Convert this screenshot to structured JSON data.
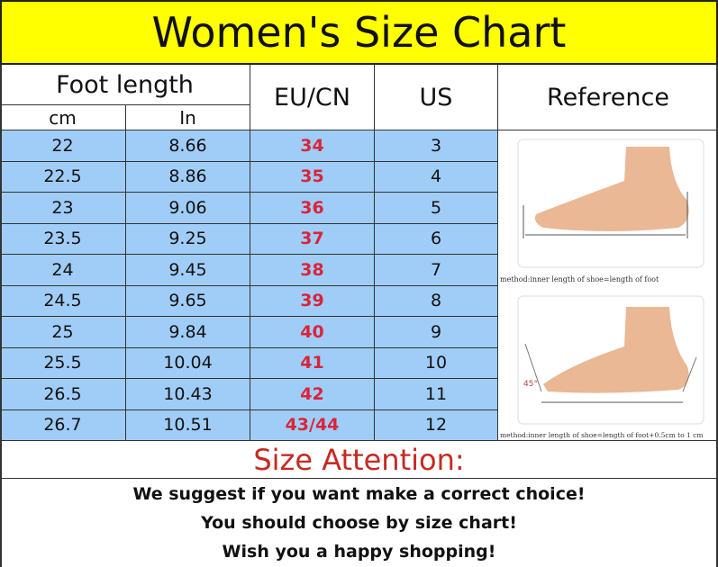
{
  "title": "Women's Size Chart",
  "header": {
    "foot_length": "Foot length",
    "cm": "cm",
    "in": "In",
    "eu_cn": "EU/CN",
    "us": "US",
    "reference": "Reference"
  },
  "rows": [
    {
      "cm": "22",
      "in": "8.66",
      "eu": "34",
      "us": "3"
    },
    {
      "cm": "22.5",
      "in": "8.86",
      "eu": "35",
      "us": "4"
    },
    {
      "cm": "23",
      "in": "9.06",
      "eu": "36",
      "us": "5"
    },
    {
      "cm": "23.5",
      "in": "9.25",
      "eu": "37",
      "us": "6"
    },
    {
      "cm": "24",
      "in": "9.45",
      "eu": "38",
      "us": "7"
    },
    {
      "cm": "24.5",
      "in": "9.65",
      "eu": "39",
      "us": "8"
    },
    {
      "cm": "25",
      "in": "9.84",
      "eu": "40",
      "us": "9"
    },
    {
      "cm": "25.5",
      "in": "10.04",
      "eu": "41",
      "us": "10"
    },
    {
      "cm": "26.5",
      "in": "10.43",
      "eu": "42",
      "us": "11"
    },
    {
      "cm": "26.7",
      "in": "10.51",
      "eu": "43/44",
      "us": "12"
    }
  ],
  "reference": {
    "caption1": "method:inner length of shoe=length of foot",
    "caption2": "method:inner length of shoe=length of foot+0.5cm to 1 cm",
    "angle": "45°"
  },
  "attention": {
    "heading": "Size Attention:",
    "lines": [
      "We suggest if you want make a correct choice!",
      "You should choose by size chart!",
      "Wish you a happy shopping!"
    ]
  },
  "colors": {
    "title_bg": "#ffff00",
    "row_bg": "#a0cdf7",
    "eu_text": "#d9253a",
    "attention": "#c62a22"
  }
}
